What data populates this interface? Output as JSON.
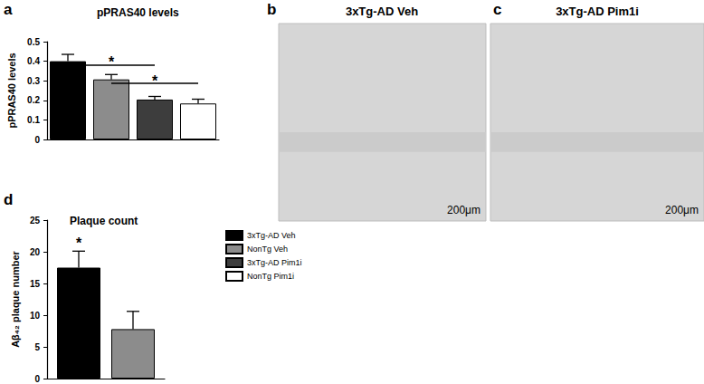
{
  "chart_data": [
    {
      "type": "bar",
      "panel": "a",
      "title": "pPRAS40 levels",
      "y_label": "pPRAS40 levels",
      "categories": [
        null
      ],
      "series": [
        {
          "name": "3xTg-AD Veh",
          "color": "#000000",
          "values": [
            0.4
          ],
          "errors": [
            0.035
          ]
        },
        {
          "name": "NonTg Veh",
          "color": "#8c8c8c",
          "values": [
            0.307
          ],
          "errors": [
            0.025
          ]
        },
        {
          "name": "3xTg-AD Pim1i",
          "color": "#3d3d3d",
          "values": [
            0.204
          ],
          "errors": [
            0.016
          ]
        },
        {
          "name": "NonTg Pim1i",
          "color": "#ffffff",
          "values": [
            0.184
          ],
          "errors": [
            0.022
          ]
        }
      ],
      "ylim": [
        0,
        0.5
      ],
      "yticks": [
        0,
        0.1,
        0.2,
        0.3,
        0.4,
        0.5
      ],
      "tick_labels": "y",
      "significance": [
        {
          "from": "3xTg-AD Veh",
          "to": "3xTg-AD Pim1i",
          "y": 0.38,
          "label": "*"
        },
        {
          "from": "NonTg Veh",
          "to": "NonTg Pim1i",
          "y": 0.287,
          "label": "*"
        }
      ]
    },
    {
      "type": "bar",
      "panel": "d",
      "title": "Plaque count",
      "y_label": "Aβ₄₂ plaque number",
      "categories": [
        null
      ],
      "series": [
        {
          "name": "3xTg-AD Veh",
          "color": "#000000",
          "values": [
            17.5
          ],
          "errors": [
            2.6
          ]
        },
        {
          "name": "NonTg Veh",
          "color": "#8c8c8c",
          "values": [
            7.8
          ],
          "errors": [
            2.8
          ]
        }
      ],
      "ylim": [
        0,
        25
      ],
      "yticks": [
        0,
        5,
        10,
        15,
        20,
        25
      ],
      "tick_labels": "y",
      "legend": "right",
      "significance": [
        {
          "from": "3xTg-AD Veh",
          "to": "3xTg-AD Veh",
          "y": 21,
          "label": "*"
        }
      ]
    }
  ],
  "image_panels": [
    {
      "panel": "b",
      "title": "3xTg-AD Veh",
      "scale_bar": "200μm"
    },
    {
      "panel": "c",
      "title": "3xTg-AD Pim1i",
      "scale_bar": "200μm"
    }
  ]
}
